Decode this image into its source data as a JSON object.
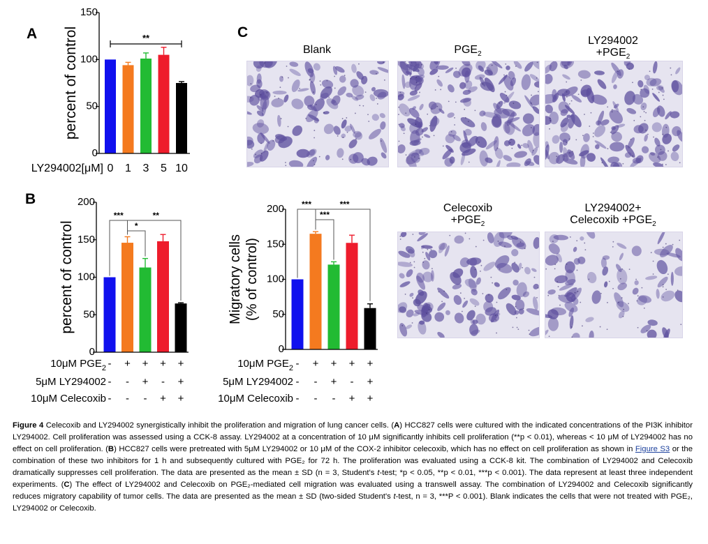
{
  "panel_letters": {
    "a": "A",
    "b": "B",
    "c": "C"
  },
  "colors": {
    "c0": "#1010ee",
    "c1": "#f47a1f",
    "c2": "#22bb33",
    "c3": "#ee1c2c",
    "c4": "#000000",
    "micro_bg": "#e6e4f0",
    "micro_stain": "#5d4f9e",
    "link": "#1a3f9c"
  },
  "chart_data": [
    {
      "id": "A",
      "type": "bar",
      "title": "",
      "ylabel": "percent of control",
      "xlabel": "LY294002[μM]",
      "categories": [
        "0",
        "1",
        "3",
        "5",
        "10"
      ],
      "values": [
        100,
        94,
        101,
        105,
        75
      ],
      "errors": [
        0,
        3,
        6,
        8,
        1.5
      ],
      "ylim": [
        0,
        150
      ],
      "yticks": [
        "0",
        "50",
        "100",
        "150"
      ],
      "bracket_label": "**"
    },
    {
      "id": "B",
      "type": "bar",
      "title": "",
      "ylabel": "percent of control",
      "values": [
        100,
        146,
        113,
        148,
        65
      ],
      "errors": [
        0,
        8,
        12,
        9,
        1
      ],
      "ylim": [
        0,
        200
      ],
      "yticks": [
        "0",
        "50",
        "100",
        "150",
        "200"
      ],
      "treatment_rows": [
        {
          "label": "10μM PGE",
          "sub": "2",
          "marks": [
            "-",
            "+",
            "+",
            "+",
            "+"
          ]
        },
        {
          "label": "5μM LY294002",
          "sub": "",
          "marks": [
            "-",
            "-",
            "+",
            "-",
            "+"
          ]
        },
        {
          "label": "10μM Celecoxib",
          "sub": "",
          "marks": [
            "-",
            "-",
            "-",
            "+",
            "+"
          ]
        }
      ],
      "significance": [
        "***",
        "*",
        "**"
      ]
    },
    {
      "id": "C",
      "type": "bar",
      "title": "",
      "ylabel": "Migratory cells",
      "ylabel2": "(% of control)",
      "values": [
        100,
        165,
        121,
        152,
        59
      ],
      "errors": [
        0,
        3,
        4,
        11,
        6
      ],
      "ylim": [
        0,
        200
      ],
      "yticks": [
        "0",
        "50",
        "100",
        "150",
        "200"
      ],
      "treatment_rows": [
        {
          "label": "10μM PGE",
          "sub": "2",
          "marks": [
            "-",
            "+",
            "+",
            "+",
            "+"
          ]
        },
        {
          "label": "5μM LY294002",
          "sub": "",
          "marks": [
            "-",
            "-",
            "+",
            "-",
            "+"
          ]
        },
        {
          "label": "10μM Celecoxib",
          "sub": "",
          "marks": [
            "-",
            "-",
            "-",
            "+",
            "+"
          ]
        }
      ],
      "significance": [
        "***",
        "***",
        "***"
      ]
    }
  ],
  "micrographs": [
    {
      "title": "Blank",
      "title2": "",
      "sub": ""
    },
    {
      "title": "PGE",
      "title2": "",
      "sub": "2"
    },
    {
      "title": "LY294002",
      "title2": "+PGE",
      "sub": "2"
    },
    {
      "title": "Celecoxib",
      "title2": "+PGE",
      "sub": "2"
    },
    {
      "title": "LY294002+",
      "title2": "Celecoxib +PGE",
      "sub": "2"
    }
  ],
  "caption": {
    "figure_label": "Figure 4",
    "line1": " Celecoxib and LY294002 synergistically inhibit the proliferation and migration of lung cancer cells. (",
    "A": "A",
    "line2": ") HCC827 cells were cultured with the indicated concentrations of the PI3K inhibitor LY294002. Cell proliferation was assessed using a CCK-8 assay. LY294002 at a concentration of 10 μM significantly inhibits cell proliferation (**p < 0.01), whereas < 10 μM of LY294002 has no effect on cell proliferation. (",
    "B": "B",
    "line3": ") HCC827 cells were pretreated with 5μM LY294002 or 10 μM of the COX-2 inhibitor celecoxib, which has no effect on cell proliferation as shown in ",
    "link": "Figure S3",
    "line4": " or the combination of these two inhibitors for 1 h and subsequently cultured with PGE₂ for 72 h. The proliferation was evaluated using a CCK-8 kit. The combination of LY294002 and Celecoxib dramatically suppresses cell proliferation. The data are presented as the mean ± SD (n = 3, Student's ",
    "t1": "t",
    "line5": "-test; *p < 0.05, **p < 0.01, ***p < 0.001). The data represent at least three independent experiments. (",
    "C": "C",
    "line6": ") The effect of LY294002 and Celecoxib on PGE₂-mediated cell migration was evaluated using a transwell assay. The combination of LY294002 and Celecoxib significantly reduces migratory capability of tumor cells. The data are presented as the mean ± SD (two-sided Student's ",
    "t2": "t",
    "line7": "-test, n = 3, ***P < 0.001). Blank indicates the cells that were not treated with PGE₂, LY294002 or Celecoxib."
  }
}
